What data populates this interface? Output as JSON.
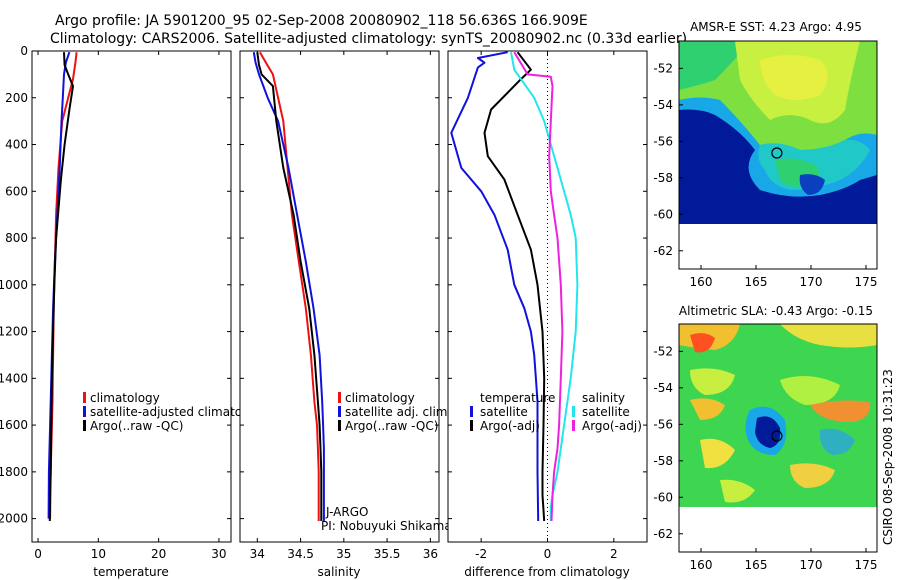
{
  "title_line1": "Argo profile: JA 5901200_95 02-Sep-2008 20080902_118 56.636S 166.909E",
  "title_line2": "Climatology: CARS2006. Satellite-adjusted climatology: synTS_20080902.nc (0.33d earlier)",
  "side_stamp": "CSIRO 08-Sep-2008 10:31:23",
  "colors": {
    "climatology": "#ee1111",
    "satellite": "#1111dd",
    "argo": "#000000",
    "cyan": "#22e6ee",
    "magenta": "#ee22dd"
  },
  "chart_data": [
    {
      "type": "line",
      "xlabel": "temperature",
      "ylabel": "",
      "xlim": [
        -1,
        32
      ],
      "ylim": [
        2100,
        0
      ],
      "xticks": [
        "0",
        "10",
        "20",
        "30"
      ],
      "yticks": [
        "0",
        "200",
        "400",
        "600",
        "800",
        "1000",
        "1200",
        "1400",
        "1600",
        "1800",
        "2000"
      ],
      "legend": [
        "climatology",
        "satellite-adjusted climatology",
        "Argo(..raw -QC)"
      ],
      "series": [
        {
          "name": "climatology",
          "color": "#ee1111",
          "x": [
            6.4,
            6.2,
            5.8,
            5.0,
            4.0,
            3.4,
            3.0,
            2.8,
            2.6,
            2.5,
            2.4,
            2.3,
            2.2,
            2.1,
            2.05,
            2.0
          ],
          "y": [
            5,
            50,
            120,
            200,
            300,
            500,
            700,
            900,
            1100,
            1300,
            1500,
            1600,
            1700,
            1800,
            1900,
            2000
          ]
        },
        {
          "name": "satellite-adjusted climatology",
          "color": "#1111dd",
          "x": [
            5.2,
            4.6,
            4.3,
            4.1,
            3.9,
            3.6,
            3.2,
            2.8,
            2.5,
            2.3,
            2.1,
            2.0,
            1.9,
            1.8,
            1.75
          ],
          "y": [
            5,
            50,
            100,
            200,
            300,
            500,
            700,
            900,
            1100,
            1300,
            1500,
            1600,
            1700,
            1800,
            2000
          ]
        },
        {
          "name": "Argo(..raw -QC)",
          "color": "#000000",
          "x": [
            4.3,
            4.4,
            5.0,
            5.8,
            5.2,
            4.4,
            3.8,
            3.0,
            2.7,
            2.5,
            2.3,
            2.2,
            2.1,
            2.0,
            1.95
          ],
          "y": [
            5,
            60,
            100,
            150,
            250,
            400,
            550,
            800,
            1000,
            1200,
            1400,
            1600,
            1800,
            1900,
            2010
          ]
        }
      ]
    },
    {
      "type": "line",
      "xlabel": "salinity",
      "xlim": [
        33.8,
        36.1
      ],
      "ylim": [
        2100,
        0
      ],
      "xticks": [
        "34",
        "34.5",
        "35",
        "35.5",
        "36"
      ],
      "legend": [
        "climatology",
        "satellite adj. clim.",
        "Argo(..raw -QC)"
      ],
      "annotation_lines": [
        "J-ARGO",
        "PI: Nobuyuki Shikama"
      ],
      "series": [
        {
          "name": "climatology",
          "color": "#ee1111",
          "x": [
            34.03,
            34.1,
            34.18,
            34.24,
            34.3,
            34.35,
            34.4,
            34.48,
            34.56,
            34.62,
            34.66,
            34.69,
            34.7,
            34.71,
            34.71
          ],
          "y": [
            5,
            50,
            100,
            200,
            300,
            500,
            700,
            900,
            1100,
            1300,
            1500,
            1600,
            1700,
            1800,
            2010
          ]
        },
        {
          "name": "satellite adj. clim.",
          "color": "#1111dd",
          "x": [
            33.96,
            33.98,
            34.02,
            34.12,
            34.24,
            34.36,
            34.46,
            34.56,
            34.65,
            34.72,
            34.75,
            34.76,
            34.77,
            34.77,
            34.77
          ],
          "y": [
            5,
            50,
            100,
            200,
            300,
            500,
            700,
            900,
            1100,
            1300,
            1500,
            1600,
            1700,
            1800,
            2010
          ]
        },
        {
          "name": "Argo(..raw -QC)",
          "color": "#000000",
          "x": [
            34.0,
            34.02,
            34.05,
            34.18,
            34.22,
            34.3,
            34.42,
            34.5,
            34.6,
            34.66,
            34.7,
            34.72,
            34.73,
            34.74,
            34.74
          ],
          "y": [
            5,
            60,
            100,
            150,
            300,
            500,
            700,
            900,
            1100,
            1300,
            1500,
            1600,
            1700,
            1800,
            2010
          ]
        }
      ]
    },
    {
      "type": "line",
      "xlabel": "difference from climatology",
      "xlim": [
        -3,
        3
      ],
      "ylim": [
        2100,
        0
      ],
      "xticks": [
        "-2",
        "0",
        "2"
      ],
      "zero_line": 0,
      "legend_left_title": "temperature",
      "legend_left": [
        "satellite",
        "Argo(-adj)"
      ],
      "legend_right_title": "salinity",
      "legend_right": [
        "satellite",
        "Argo(-adj)"
      ],
      "series": [
        {
          "name": "temperature satellite",
          "color": "#1111dd",
          "x": [
            -1.2,
            -2.1,
            -1.9,
            -2.1,
            -2.4,
            -2.9,
            -2.6,
            -2.0,
            -1.6,
            -1.2,
            -1.0,
            -0.7,
            -0.5,
            -0.4,
            -0.35,
            -0.3,
            -0.3,
            -0.3,
            -0.28
          ],
          "y": [
            5,
            30,
            50,
            70,
            200,
            350,
            500,
            600,
            700,
            850,
            1000,
            1100,
            1200,
            1300,
            1400,
            1500,
            1600,
            1800,
            2010
          ]
        },
        {
          "name": "temperature Argo(-adj)",
          "color": "#000000",
          "x": [
            -0.9,
            -0.5,
            -0.8,
            -1.7,
            -1.9,
            -1.8,
            -1.3,
            -0.9,
            -0.5,
            -0.3,
            -0.15,
            -0.1,
            -0.12,
            -0.15,
            -0.15,
            -0.1
          ],
          "y": [
            5,
            80,
            120,
            250,
            350,
            450,
            550,
            700,
            850,
            1000,
            1200,
            1400,
            1600,
            1800,
            1900,
            2010
          ]
        },
        {
          "name": "salinity satellite",
          "color": "#22e6ee",
          "x": [
            -1.1,
            -1.0,
            -0.9,
            -0.4,
            -0.1,
            0.1,
            0.3,
            0.5,
            0.7,
            0.85,
            0.9,
            0.85,
            0.7,
            0.5,
            0.3,
            0.15,
            0.1,
            0.1
          ],
          "y": [
            5,
            80,
            100,
            200,
            300,
            400,
            500,
            600,
            700,
            800,
            1000,
            1200,
            1400,
            1600,
            1800,
            1900,
            1950,
            2010
          ]
        },
        {
          "name": "salinity Argo(-adj)",
          "color": "#ee22dd",
          "x": [
            -1.0,
            -0.6,
            0.1,
            0.15,
            0.1,
            0.05,
            0.1,
            0.2,
            0.3,
            0.4,
            0.45,
            0.4,
            0.35,
            0.3,
            0.2,
            0.15,
            0.12
          ],
          "y": [
            5,
            100,
            110,
            150,
            300,
            450,
            600,
            700,
            800,
            1000,
            1200,
            1400,
            1600,
            1700,
            1800,
            1900,
            2010
          ]
        }
      ]
    },
    {
      "type": "heatmap",
      "title": "AMSR-E SST: 4.23 Argo: 4.95",
      "xlim": [
        158,
        176
      ],
      "ylim": [
        -63,
        -50.5
      ],
      "xticks": [
        "160",
        "165",
        "170",
        "175"
      ],
      "yticks": [
        "-52",
        "-54",
        "-56",
        "-58",
        "-60",
        "-62"
      ],
      "float_position": [
        166.9,
        -56.64
      ]
    },
    {
      "type": "heatmap",
      "title": "Altimetric SLA: -0.43 Argo: -0.15",
      "xlim": [
        158,
        176
      ],
      "ylim": [
        -63,
        -50.5
      ],
      "xticks": [
        "160",
        "165",
        "170",
        "175"
      ],
      "yticks": [
        "-52",
        "-54",
        "-56",
        "-58",
        "-60",
        "-62"
      ],
      "float_position": [
        166.9,
        -56.64
      ]
    }
  ]
}
